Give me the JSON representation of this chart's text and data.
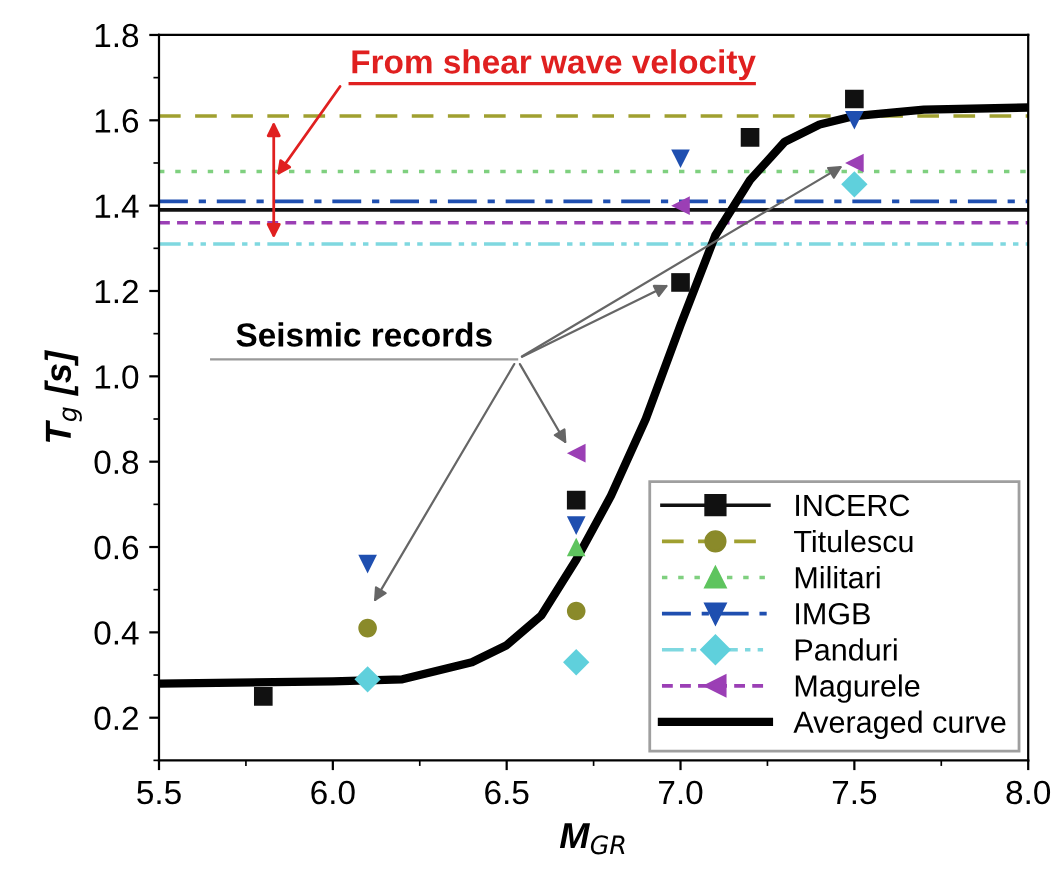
{
  "chart_data": {
    "type": "scatter",
    "xlabel": "M$_{GR}$",
    "ylabel": "T$_{g}$ [s]",
    "xlim": [
      5.5,
      8.0
    ],
    "xticks": [
      {
        "value": 5.5,
        "label": "5.5"
      },
      {
        "value": 6.0,
        "label": "6.0"
      },
      {
        "value": 6.5,
        "label": "6.5"
      },
      {
        "value": 7.0,
        "label": "7.0"
      },
      {
        "value": 7.5,
        "label": "7.5"
      },
      {
        "value": 8.0,
        "label": "8.0"
      }
    ],
    "ylim": [
      0.1,
      1.8
    ],
    "yticks": [
      0.2,
      0.4,
      0.6,
      0.8,
      {
        "value": 1.0,
        "label": "1.0"
      },
      1.2,
      1.4,
      1.6,
      1.8
    ],
    "grid": false,
    "legend": "bottom right",
    "series": [
      {
        "name": "INCERC",
        "color": "#111111",
        "marker": "square",
        "x": [
          5.8,
          6.7,
          7.0,
          7.2,
          7.5
        ],
        "values": [
          0.25,
          0.71,
          1.22,
          1.56,
          1.65
        ]
      },
      {
        "name": "Titulescu",
        "color": "#8a8a2a",
        "marker": "circle",
        "x": [
          6.1,
          6.7
        ],
        "values": [
          0.41,
          0.45
        ]
      },
      {
        "name": "Militari",
        "color": "#5ec45e",
        "marker": "triangle",
        "x": [
          6.7
        ],
        "values": [
          0.6
        ]
      },
      {
        "name": "IMGB",
        "color": "#1f4fb0",
        "marker": "triangle-down",
        "x": [
          6.1,
          6.7,
          7.0,
          7.5
        ],
        "values": [
          0.56,
          0.65,
          1.51,
          1.6
        ]
      },
      {
        "name": "Panduri",
        "color": "#5fd0dc",
        "marker": "diamond",
        "x": [
          6.1,
          6.7,
          7.5
        ],
        "values": [
          0.29,
          0.33,
          1.45
        ]
      },
      {
        "name": "Magurele",
        "color": "#9b3fb5",
        "marker": "triangle-left",
        "x": [
          6.7,
          7.0,
          7.5
        ],
        "values": [
          0.82,
          1.4,
          1.5
        ]
      },
      {
        "name": "Averaged curve",
        "type": "line",
        "color": "#000000",
        "marker": "none",
        "x": [
          5.5,
          6.0,
          6.2,
          6.4,
          6.5,
          6.6,
          6.7,
          6.8,
          6.9,
          7.0,
          7.1,
          7.2,
          7.3,
          7.4,
          7.5,
          7.7,
          8.0
        ],
        "values": [
          0.28,
          0.285,
          0.29,
          0.33,
          0.37,
          0.44,
          0.57,
          0.72,
          0.9,
          1.12,
          1.33,
          1.46,
          1.55,
          1.59,
          1.61,
          1.625,
          1.63
        ]
      }
    ],
    "ref_lines": [
      {
        "axis": "y",
        "value": 1.39,
        "color": "#111111",
        "line_style": "solid"
      },
      {
        "axis": "y",
        "value": 1.61,
        "color": "#a0a030",
        "line_style": "dashed"
      },
      {
        "axis": "y",
        "value": 1.48,
        "color": "#7fd07f",
        "line_style": "dotted"
      },
      {
        "axis": "y",
        "value": 1.41,
        "color": "#1f4fb0",
        "line_style": "dashdot"
      },
      {
        "axis": "y",
        "value": 1.31,
        "color": "#7fd8e0",
        "line_style": "dashdotdot"
      },
      {
        "axis": "y",
        "value": 1.36,
        "color": "#9b3fb5",
        "line_style": "dashed-fine"
      }
    ],
    "annotations": [
      {
        "text": "From shear wave velocity",
        "x": 5.83,
        "y": 1.46
      },
      {
        "text": "Seismic records",
        "x": 7.0,
        "y": 1.22
      }
    ]
  }
}
